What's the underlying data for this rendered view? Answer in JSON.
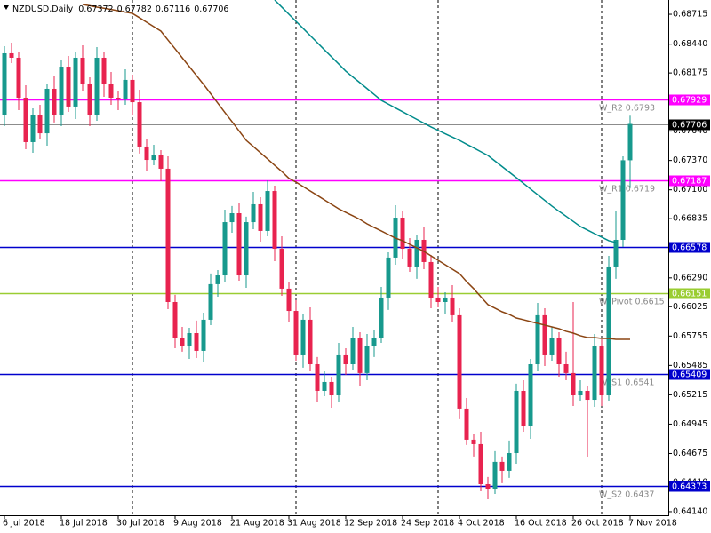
{
  "chart_data": {
    "type": "candlestick",
    "title": "NZDUSD,Daily",
    "up_color": "#17998d",
    "down_color": "#e8234f",
    "categories": [
      "6 Jul 2018",
      null,
      null,
      null,
      null,
      null,
      null,
      null,
      "18 Jul 2018",
      null,
      null,
      null,
      null,
      null,
      null,
      null,
      "30 Jul 2018",
      null,
      null,
      null,
      null,
      null,
      null,
      null,
      "9 Aug 2018",
      null,
      null,
      null,
      null,
      null,
      null,
      null,
      "21 Aug 2018",
      null,
      null,
      null,
      null,
      null,
      null,
      null,
      "31 Aug 2018",
      null,
      null,
      null,
      null,
      null,
      null,
      null,
      "12 Sep 2018",
      null,
      null,
      null,
      null,
      null,
      null,
      null,
      "24 Sep 2018",
      null,
      null,
      null,
      null,
      null,
      null,
      null,
      "4 Oct 2018",
      null,
      null,
      null,
      null,
      null,
      null,
      null,
      "16 Oct 2018",
      null,
      null,
      null,
      null,
      null,
      null,
      null,
      "26 Oct 2018",
      null,
      null,
      null,
      null,
      null,
      null,
      null,
      "7 Nov 2018"
    ],
    "open": [
      0.67784,
      0.68356,
      0.68315,
      0.67947,
      0.67539,
      0.67784,
      0.6762,
      0.68029,
      0.67784,
      0.68233,
      0.67866,
      0.68315,
      0.6807,
      0.67784,
      0.68315,
      0.6807,
      0.67947,
      0.67931,
      0.68111,
      0.67906,
      0.67498,
      0.67375,
      0.67416,
      0.67294,
      0.66068,
      0.65741,
      0.6566,
      0.65782,
      0.65619,
      0.65905,
      0.66232,
      0.66313,
      0.66803,
      0.66885,
      0.66313,
      0.66803,
      0.66967,
      0.66722,
      0.67089,
      0.66558,
      0.66191,
      0.65986,
      0.65578,
      0.65905,
      0.65496,
      0.65251,
      0.65333,
      0.6521,
      0.65578,
      0.65496,
      0.65741,
      0.65415,
      0.6566,
      0.65741,
      0.66109,
      0.66477,
      0.66844,
      0.66558,
      0.66395,
      0.6664,
      0.66436,
      0.66109,
      0.66068,
      0.66109,
      0.65946,
      0.65088,
      0.64802,
      0.64761,
      0.64393,
      0.64352,
      0.64598,
      0.64516,
      0.64679,
      0.65251,
      0.64924,
      0.65496,
      0.65946,
      0.65578,
      0.65741,
      0.65496,
      0.65415,
      0.6521,
      0.65251,
      0.65169,
      0.6566,
      0.6521,
      0.66395,
      0.6664,
      0.67372
    ],
    "high": [
      0.68421,
      0.68454,
      0.68364,
      0.68062,
      0.67849,
      0.67882,
      0.68078,
      0.68143,
      0.68299,
      0.68331,
      0.68364,
      0.68429,
      0.68135,
      0.68413,
      0.68364,
      0.68184,
      0.68013,
      0.68209,
      0.6816,
      0.68021,
      0.67563,
      0.67514,
      0.67465,
      0.67408,
      0.66134,
      0.65839,
      0.65831,
      0.65897,
      0.6597,
      0.6633,
      0.66362,
      0.66918,
      0.66951,
      0.66983,
      0.66853,
      0.67081,
      0.67032,
      0.67187,
      0.67138,
      0.66673,
      0.66256,
      0.66085,
      0.65954,
      0.66019,
      0.65562,
      0.65431,
      0.65382,
      0.65692,
      0.65643,
      0.65839,
      0.6579,
      0.65774,
      0.65807,
      0.66207,
      0.66526,
      0.66959,
      0.6691,
      0.66656,
      0.66689,
      0.66754,
      0.66501,
      0.66207,
      0.66158,
      0.66223,
      0.66011,
      0.65186,
      0.64851,
      0.64875,
      0.64459,
      0.64696,
      0.64647,
      0.64794,
      0.65317,
      0.65349,
      0.65545,
      0.6606,
      0.66011,
      0.65839,
      0.6579,
      0.65611,
      0.66068,
      0.65349,
      0.653,
      0.65774,
      0.65725,
      0.66493,
      0.66902,
      0.67408,
      0.67782
    ],
    "low": [
      0.67686,
      0.68266,
      0.67833,
      0.67473,
      0.67441,
      0.67571,
      0.67506,
      0.67719,
      0.67686,
      0.67817,
      0.67751,
      0.68004,
      0.67686,
      0.67735,
      0.67955,
      0.67882,
      0.67833,
      0.67882,
      0.67792,
      0.67433,
      0.67277,
      0.67326,
      0.67179,
      0.66003,
      0.65643,
      0.65611,
      0.65545,
      0.65553,
      0.65521,
      0.65856,
      0.66117,
      0.66248,
      0.66705,
      0.66264,
      0.66199,
      0.66738,
      0.66624,
      0.66673,
      0.66444,
      0.66125,
      0.65888,
      0.65529,
      0.65464,
      0.65431,
      0.65153,
      0.65202,
      0.65096,
      0.65145,
      0.65398,
      0.65447,
      0.653,
      0.65349,
      0.65562,
      0.65692,
      0.65995,
      0.66411,
      0.6646,
      0.66346,
      0.66281,
      0.6637,
      0.66011,
      0.66019,
      0.65954,
      0.6588,
      0.6499,
      0.64753,
      0.64647,
      0.64328,
      0.64254,
      0.64303,
      0.64402,
      0.64451,
      0.64581,
      0.64875,
      0.6481,
      0.65431,
      0.6548,
      0.65529,
      0.65382,
      0.65349,
      0.65112,
      0.65161,
      0.64638,
      0.65104,
      0.65112,
      0.65161,
      0.66281,
      0.66575,
      0.67116
    ],
    "close": [
      0.68356,
      0.68315,
      0.67947,
      0.67539,
      0.67784,
      0.6762,
      0.68029,
      0.67784,
      0.68233,
      0.67866,
      0.68315,
      0.6807,
      0.67784,
      0.68315,
      0.6807,
      0.67947,
      0.67931,
      0.68111,
      0.67906,
      0.67498,
      0.67375,
      0.67416,
      0.67294,
      0.66068,
      0.65741,
      0.6566,
      0.65782,
      0.65619,
      0.65905,
      0.66232,
      0.66313,
      0.66803,
      0.66885,
      0.66313,
      0.66803,
      0.66967,
      0.66722,
      0.67089,
      0.66558,
      0.66191,
      0.65986,
      0.65578,
      0.65905,
      0.65496,
      0.65251,
      0.65333,
      0.6521,
      0.65578,
      0.65496,
      0.65741,
      0.65415,
      0.6566,
      0.65741,
      0.66109,
      0.66477,
      0.66844,
      0.66558,
      0.66395,
      0.6664,
      0.66436,
      0.66109,
      0.66068,
      0.66109,
      0.65946,
      0.65088,
      0.64802,
      0.64761,
      0.64393,
      0.64352,
      0.64598,
      0.64516,
      0.64679,
      0.65251,
      0.64924,
      0.65496,
      0.65946,
      0.65578,
      0.65741,
      0.65496,
      0.65415,
      0.6521,
      0.65251,
      0.65169,
      0.6566,
      0.6521,
      0.66395,
      0.6664,
      0.67372,
      0.67706
    ],
    "lines": [
      {
        "color": "#8b4513",
        "values": [
          null,
          null,
          null,
          null,
          null,
          null,
          null,
          null,
          null,
          null,
          null,
          0.68805,
          0.68794,
          0.68781,
          0.6877,
          0.68759,
          0.68747,
          0.68735,
          0.68723,
          0.68683,
          0.68642,
          0.68601,
          0.6856,
          0.68478,
          0.68397,
          0.68315,
          0.68233,
          0.68152,
          0.6807,
          0.67984,
          0.67898,
          0.67811,
          0.67727,
          0.67641,
          0.67555,
          0.67498,
          0.67441,
          0.67384,
          0.67326,
          0.67269,
          0.67206,
          0.67171,
          0.6713,
          0.67089,
          0.67049,
          0.67008,
          0.66967,
          0.66926,
          0.66893,
          0.66861,
          0.66828,
          0.66787,
          0.66754,
          0.66722,
          0.66689,
          0.66656,
          0.66632,
          0.66599,
          0.66567,
          0.66534,
          0.66493,
          0.66452,
          0.66411,
          0.6637,
          0.6633,
          0.66256,
          0.66191,
          0.66117,
          0.66044,
          0.66011,
          0.65978,
          0.65954,
          0.65921,
          0.65905,
          0.65888,
          0.65872,
          0.65856,
          0.65839,
          0.65823,
          0.65799,
          0.65782,
          0.65758,
          0.65741,
          0.65741,
          0.65733,
          0.65733,
          0.65725,
          0.65725,
          0.65725
        ]
      },
      {
        "color": "#008b8b",
        "values": [
          null,
          null,
          null,
          null,
          null,
          null,
          null,
          null,
          null,
          null,
          null,
          null,
          null,
          null,
          null,
          null,
          null,
          null,
          null,
          null,
          null,
          null,
          null,
          null,
          null,
          null,
          null,
          null,
          null,
          null,
          null,
          null,
          null,
          null,
          null,
          null,
          null,
          null,
          0.68846,
          0.68781,
          0.68715,
          0.6865,
          0.68585,
          0.68519,
          0.68454,
          0.68388,
          0.68323,
          0.68258,
          0.68192,
          0.68138,
          0.68085,
          0.68031,
          0.67977,
          0.67923,
          0.67888,
          0.67853,
          0.67818,
          0.67783,
          0.67748,
          0.67713,
          0.67678,
          0.67647,
          0.67616,
          0.67585,
          0.67555,
          0.6752,
          0.67486,
          0.67451,
          0.67416,
          0.67365,
          0.67314,
          0.67263,
          0.67212,
          0.6716,
          0.67107,
          0.67055,
          0.67003,
          0.66951,
          0.66903,
          0.66857,
          0.6681,
          0.66763,
          0.6673,
          0.66697,
          0.66665,
          0.66632,
          0.66616,
          null,
          null
        ]
      }
    ],
    "levels": [
      {
        "name": "W_R2",
        "value": 0.67929,
        "value_label": "0.6793",
        "color": "#ff00ff"
      },
      {
        "name": "W_R1",
        "value": 0.67187,
        "value_label": "0.6719",
        "color": "#ff00ff"
      },
      {
        "value": 0.66578,
        "color": "#0000cd"
      },
      {
        "name": "W_Pivot",
        "value": 0.66151,
        "value_label": "0.6615",
        "color": "#9acd32"
      },
      {
        "name": "W_S1",
        "value": 0.65409,
        "value_label": "0.6541",
        "color": "#0000cd"
      },
      {
        "name": "W_S2",
        "value": 0.64373,
        "value_label": "0.6437",
        "color": "#0000cd"
      }
    ],
    "ylim": [
      0.64107,
      0.68846
    ],
    "yticks": [
      0.68715,
      {
        "value": 0.6844,
        "label": "0.68440"
      },
      0.68175,
      {
        "value": 0.6764,
        "label": "0.67640"
      },
      {
        "value": 0.6737,
        "label": "0.67370"
      },
      {
        "value": 0.671,
        "label": "0.67100"
      },
      0.66835,
      {
        "value": 0.6629,
        "label": "0.66290"
      },
      0.66025,
      0.65755,
      0.65485,
      0.65215,
      0.64945,
      0.64675,
      {
        "value": 0.6441,
        "label": "0.64410"
      },
      {
        "value": 0.6414,
        "label": "0.64140"
      }
    ],
    "grid": false
  }
}
